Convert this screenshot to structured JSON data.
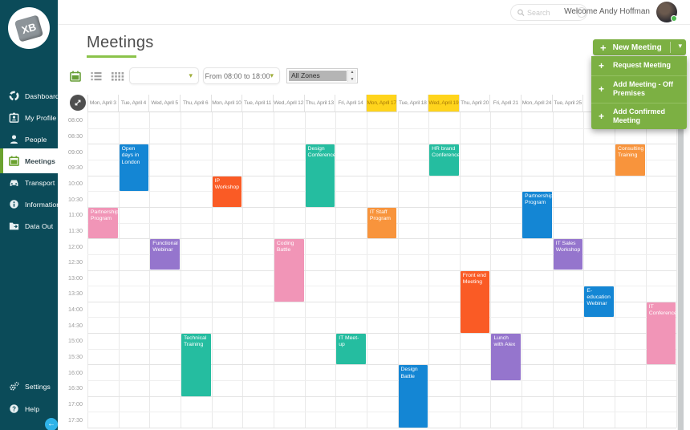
{
  "app": {
    "logo_text": "XB"
  },
  "topbar": {
    "search_placeholder": "Search",
    "welcome": "Welcome Andy Hoffman"
  },
  "sidebar": {
    "items": [
      {
        "label": "Dashboard",
        "icon": "dashboard",
        "active": false
      },
      {
        "label": "My Profile",
        "icon": "my-profile",
        "active": false
      },
      {
        "label": "People",
        "icon": "people",
        "active": false
      },
      {
        "label": "Meetings",
        "icon": "meetings",
        "active": true
      },
      {
        "label": "Transport",
        "icon": "transport",
        "active": false
      },
      {
        "label": "Information",
        "icon": "information",
        "active": false
      },
      {
        "label": "Data Out",
        "icon": "data-out",
        "active": false
      }
    ],
    "bottom_items": [
      {
        "label": "Settings",
        "icon": "settings"
      },
      {
        "label": "Help",
        "icon": "help"
      }
    ]
  },
  "page": {
    "title": "Meetings"
  },
  "toolbar": {
    "filter_placeholder": "",
    "time_range": "From 08:00 to 18:00",
    "zone_select": "All Zones"
  },
  "new_meeting": {
    "button_label": "New Meeting",
    "menu_items": [
      "Request Meeting",
      "Add Meeting - Off Premises",
      "Add Confirmed Meeting"
    ]
  },
  "calendar": {
    "palette": {
      "blue": "#1486D4",
      "teal": "#25BDA0",
      "pink": "#F195B7",
      "purple": "#9575CD",
      "red_orange": "#FA5B25",
      "orange": "#F8943C",
      "highlight_yellow": "#FFD41C",
      "accent_green": "#7CB043",
      "sidebar_bg": "#0B4B59"
    },
    "columns": [
      {
        "label": "Mon, April 3",
        "highlight": false
      },
      {
        "label": "Tue, April 4",
        "highlight": false
      },
      {
        "label": "Wed, April 5",
        "highlight": false
      },
      {
        "label": "Thu, April 6",
        "highlight": false
      },
      {
        "label": "Mon, April 10",
        "highlight": false
      },
      {
        "label": "Tue, April 11",
        "highlight": false
      },
      {
        "label": "Wed, April 12",
        "highlight": false
      },
      {
        "label": "Thu, April 13",
        "highlight": false
      },
      {
        "label": "Fri, April 14",
        "highlight": false
      },
      {
        "label": "Mon, April 17",
        "highlight": true
      },
      {
        "label": "Tue, April 18",
        "highlight": false
      },
      {
        "label": "Wed, April 19",
        "highlight": true
      },
      {
        "label": "Thu, April 20",
        "highlight": false
      },
      {
        "label": "Fri, April 21",
        "highlight": false
      },
      {
        "label": "Mon, April 24",
        "highlight": false
      },
      {
        "label": "Tue, April 25",
        "highlight": false
      },
      {
        "label": "",
        "highlight": false
      },
      {
        "label": "",
        "highlight": false
      },
      {
        "label": "",
        "highlight": false
      }
    ],
    "times": [
      "08:00",
      "08:30",
      "09:00",
      "09:30",
      "10:00",
      "10:30",
      "11:00",
      "11:30",
      "12:00",
      "12:30",
      "13:00",
      "13:30",
      "14:00",
      "14:30",
      "15:00",
      "15:30",
      "16:00",
      "16:30",
      "17:00",
      "17:30"
    ],
    "meetings": [
      {
        "title": "Partnership Program",
        "column": 0,
        "start": "11:00",
        "end": "12:00",
        "color": "pink"
      },
      {
        "title": "Open days in London",
        "column": 1,
        "start": "09:00",
        "end": "10:30",
        "color": "blue"
      },
      {
        "title": "Functional Webinar",
        "column": 2,
        "start": "12:00",
        "end": "13:00",
        "color": "purple"
      },
      {
        "title": "Technical Training",
        "column": 3,
        "start": "15:00",
        "end": "17:00",
        "color": "teal"
      },
      {
        "title": "IP Workshop",
        "column": 4,
        "start": "10:00",
        "end": "11:00",
        "color": "red_orange"
      },
      {
        "title": "Coding Battle",
        "column": 6,
        "start": "12:00",
        "end": "14:00",
        "color": "pink"
      },
      {
        "title": "Design Conference",
        "column": 7,
        "start": "09:00",
        "end": "11:00",
        "color": "teal"
      },
      {
        "title": "IT Meet-up",
        "column": 8,
        "start": "15:00",
        "end": "16:00",
        "color": "teal"
      },
      {
        "title": "IT Staff Program",
        "column": 9,
        "start": "11:00",
        "end": "12:00",
        "color": "orange"
      },
      {
        "title": "Design Battle",
        "column": 10,
        "start": "16:00",
        "end": "18:00",
        "color": "blue"
      },
      {
        "title": "HR brand Conference",
        "column": 11,
        "start": "09:00",
        "end": "10:00",
        "color": "teal"
      },
      {
        "title": "Front end Meeting",
        "column": 12,
        "start": "13:00",
        "end": "15:00",
        "color": "red_orange"
      },
      {
        "title": "Lunch with Alex",
        "column": 13,
        "start": "15:00",
        "end": "16:30",
        "color": "purple"
      },
      {
        "title": "Partnership Program",
        "column": 14,
        "start": "10:30",
        "end": "12:00",
        "color": "blue"
      },
      {
        "title": "IT Sales Workshop",
        "column": 15,
        "start": "12:00",
        "end": "13:00",
        "color": "purple"
      },
      {
        "title": "E-education Webinar",
        "column": 16,
        "start": "13:30",
        "end": "14:30",
        "color": "blue"
      },
      {
        "title": "Consulting Training",
        "column": 17,
        "start": "09:00",
        "end": "10:00",
        "color": "orange"
      },
      {
        "title": "IT Conference",
        "column": 18,
        "start": "14:00",
        "end": "16:00",
        "color": "pink"
      }
    ]
  }
}
